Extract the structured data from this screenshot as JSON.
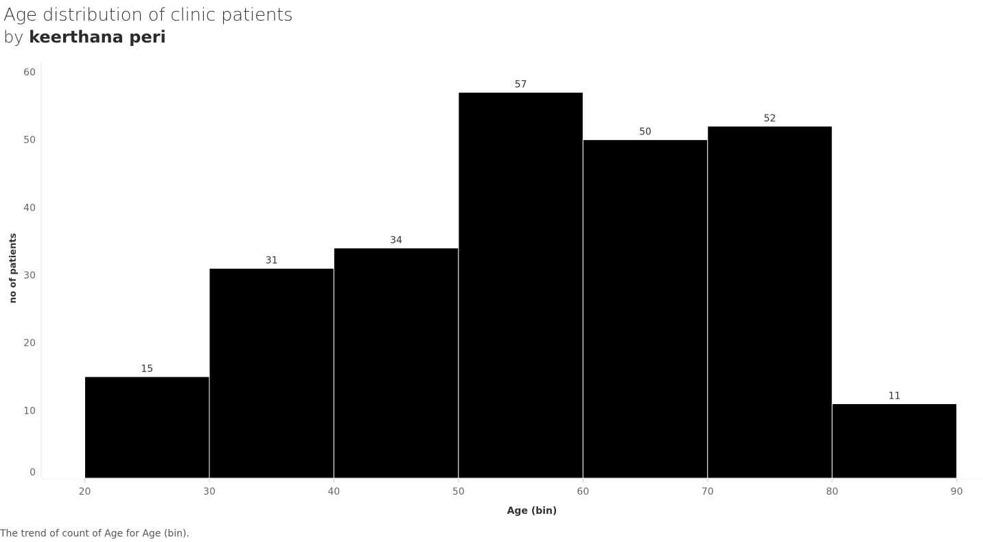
{
  "header": {
    "title": "Age distribution of clinic patients",
    "by_prefix": "by ",
    "author": "keerthana peri"
  },
  "caption": "The trend of count of Age for Age (bin).",
  "chart_data": {
    "type": "bar",
    "title": "Age distribution of clinic patients",
    "xlabel": "Age (bin)",
    "ylabel": "no of patients",
    "bin_edges": [
      20,
      30,
      40,
      50,
      60,
      70,
      80,
      90
    ],
    "values": [
      15,
      31,
      34,
      57,
      50,
      52,
      11
    ],
    "x_ticks": [
      20,
      30,
      40,
      50,
      60,
      70,
      80,
      90
    ],
    "y_ticks": [
      0,
      10,
      20,
      30,
      40,
      50,
      60
    ],
    "xlim": [
      16.5,
      92
    ],
    "ylim": [
      0,
      60
    ],
    "grid": false,
    "legend": "none",
    "bar_color": "#000000",
    "bar_edge_color": "#ffffff"
  }
}
